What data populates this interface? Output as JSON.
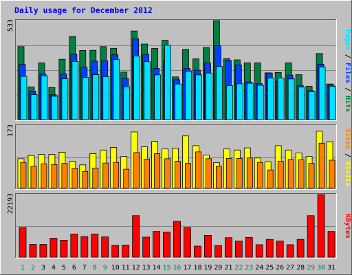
{
  "title": "Daily usage for December 2012",
  "colors": {
    "background": "#C0C0C0",
    "title": "#0000FF",
    "hits": "#008040",
    "files": "#0040FF",
    "pages": "#00E0FF",
    "visits": "#FFFF00",
    "sites": "#FF8000",
    "kbytes": "#FF0000",
    "weekday_label": "#000000",
    "weekend_label": "#008040"
  },
  "chart_data": [
    {
      "type": "bar",
      "panel": "hits-files-pages",
      "ymax_label": "533",
      "ylim": [
        0,
        533
      ],
      "legend": [
        "Pages",
        "Files",
        "Hits"
      ],
      "categories": [
        "1",
        "2",
        "3",
        "4",
        "5",
        "6",
        "7",
        "8",
        "9",
        "10",
        "11",
        "12",
        "13",
        "14",
        "15",
        "16",
        "17",
        "18",
        "19",
        "20",
        "21",
        "22",
        "23",
        "24",
        "25",
        "26",
        "27",
        "28",
        "29",
        "30",
        "31"
      ],
      "weekend_days": [
        1,
        2,
        8,
        9,
        15,
        16,
        22,
        23,
        29,
        30
      ],
      "series": [
        {
          "name": "Hits",
          "values": [
            393,
            176,
            306,
            173,
            325,
            448,
            372,
            373,
            393,
            384,
            256,
            477,
            407,
            383,
            427,
            230,
            378,
            327,
            388,
            533,
            328,
            322,
            306,
            306,
            252,
            254,
            306,
            242,
            180,
            356,
            192
          ]
        },
        {
          "name": "Files",
          "values": [
            297,
            153,
            246,
            134,
            246,
            351,
            282,
            315,
            316,
            349,
            222,
            435,
            351,
            276,
            318,
            215,
            276,
            266,
            305,
            398,
            318,
            295,
            203,
            194,
            251,
            206,
            240,
            184,
            156,
            298,
            187
          ]
        },
        {
          "name": "Pages",
          "values": [
            233,
            135,
            236,
            126,
            220,
            313,
            227,
            242,
            232,
            323,
            177,
            343,
            312,
            241,
            400,
            192,
            261,
            241,
            251,
            286,
            183,
            193,
            196,
            185,
            224,
            224,
            219,
            175,
            151,
            283,
            180
          ]
        }
      ]
    },
    {
      "type": "bar",
      "panel": "visits-sites",
      "ymax_label": "173",
      "ylim": [
        0,
        173
      ],
      "legend": [
        "Sites",
        "Visits"
      ],
      "categories": [
        "1",
        "2",
        "3",
        "4",
        "5",
        "6",
        "7",
        "8",
        "9",
        "10",
        "11",
        "12",
        "13",
        "14",
        "15",
        "16",
        "17",
        "18",
        "19",
        "20",
        "21",
        "22",
        "23",
        "24",
        "25",
        "26",
        "27",
        "28",
        "29",
        "30",
        "31"
      ],
      "series": [
        {
          "name": "Visits",
          "values": [
            82,
            91,
            94,
            94,
            100,
            75,
            65,
            96,
            106,
            113,
            88,
            156,
            115,
            130,
            109,
            111,
            145,
            118,
            92,
            71,
            109,
            106,
            112,
            84,
            73,
            118,
            106,
            98,
            88,
            158,
            129
          ]
        },
        {
          "name": "Sites",
          "values": [
            72,
            61,
            68,
            66,
            69,
            55,
            47,
            56,
            70,
            72,
            53,
            99,
            81,
            96,
            82,
            75,
            69,
            101,
            82,
            61,
            83,
            83,
            84,
            72,
            51,
            75,
            80,
            79,
            69,
            125,
            78
          ]
        }
      ]
    },
    {
      "type": "bar",
      "panel": "kbytes",
      "ymax_label": "22193",
      "ylim": [
        0,
        22193
      ],
      "legend": [
        "KBytes"
      ],
      "categories": [
        "1",
        "2",
        "3",
        "4",
        "5",
        "6",
        "7",
        "8",
        "9",
        "10",
        "11",
        "12",
        "13",
        "14",
        "15",
        "16",
        "17",
        "18",
        "19",
        "20",
        "21",
        "22",
        "23",
        "24",
        "25",
        "26",
        "27",
        "28",
        "29",
        "30",
        "31"
      ],
      "series": [
        {
          "name": "KBytes",
          "values": [
            10500,
            4500,
            4500,
            6700,
            6000,
            8200,
            7300,
            8200,
            7200,
            4200,
            4300,
            14700,
            7100,
            9100,
            8900,
            12700,
            10500,
            3900,
            7700,
            4100,
            6900,
            5700,
            7000,
            4400,
            6300,
            5700,
            4400,
            6300,
            14700,
            22193,
            9100
          ]
        }
      ]
    }
  ]
}
